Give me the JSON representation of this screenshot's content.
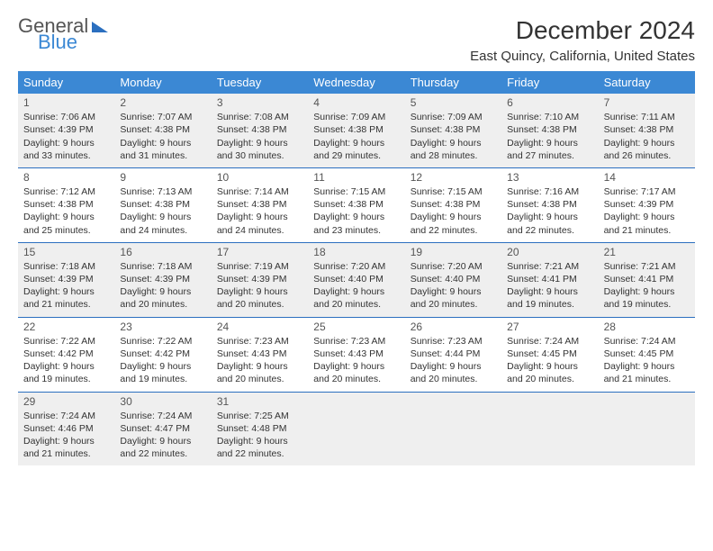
{
  "brand": {
    "line1": "General",
    "line2": "Blue"
  },
  "title": "December 2024",
  "location": "East Quincy, California, United States",
  "colors": {
    "header_bg": "#3b88d4",
    "header_text": "#ffffff",
    "week_border": "#2b6fbf",
    "shaded_cell": "#efefef",
    "text": "#333333",
    "logo_blue": "#3b88d4"
  },
  "day_names": [
    "Sunday",
    "Monday",
    "Tuesday",
    "Wednesday",
    "Thursday",
    "Friday",
    "Saturday"
  ],
  "days": {
    "1": {
      "sunrise": "Sunrise: 7:06 AM",
      "sunset": "Sunset: 4:39 PM",
      "day1": "Daylight: 9 hours",
      "day2": "and 33 minutes."
    },
    "2": {
      "sunrise": "Sunrise: 7:07 AM",
      "sunset": "Sunset: 4:38 PM",
      "day1": "Daylight: 9 hours",
      "day2": "and 31 minutes."
    },
    "3": {
      "sunrise": "Sunrise: 7:08 AM",
      "sunset": "Sunset: 4:38 PM",
      "day1": "Daylight: 9 hours",
      "day2": "and 30 minutes."
    },
    "4": {
      "sunrise": "Sunrise: 7:09 AM",
      "sunset": "Sunset: 4:38 PM",
      "day1": "Daylight: 9 hours",
      "day2": "and 29 minutes."
    },
    "5": {
      "sunrise": "Sunrise: 7:09 AM",
      "sunset": "Sunset: 4:38 PM",
      "day1": "Daylight: 9 hours",
      "day2": "and 28 minutes."
    },
    "6": {
      "sunrise": "Sunrise: 7:10 AM",
      "sunset": "Sunset: 4:38 PM",
      "day1": "Daylight: 9 hours",
      "day2": "and 27 minutes."
    },
    "7": {
      "sunrise": "Sunrise: 7:11 AM",
      "sunset": "Sunset: 4:38 PM",
      "day1": "Daylight: 9 hours",
      "day2": "and 26 minutes."
    },
    "8": {
      "sunrise": "Sunrise: 7:12 AM",
      "sunset": "Sunset: 4:38 PM",
      "day1": "Daylight: 9 hours",
      "day2": "and 25 minutes."
    },
    "9": {
      "sunrise": "Sunrise: 7:13 AM",
      "sunset": "Sunset: 4:38 PM",
      "day1": "Daylight: 9 hours",
      "day2": "and 24 minutes."
    },
    "10": {
      "sunrise": "Sunrise: 7:14 AM",
      "sunset": "Sunset: 4:38 PM",
      "day1": "Daylight: 9 hours",
      "day2": "and 24 minutes."
    },
    "11": {
      "sunrise": "Sunrise: 7:15 AM",
      "sunset": "Sunset: 4:38 PM",
      "day1": "Daylight: 9 hours",
      "day2": "and 23 minutes."
    },
    "12": {
      "sunrise": "Sunrise: 7:15 AM",
      "sunset": "Sunset: 4:38 PM",
      "day1": "Daylight: 9 hours",
      "day2": "and 22 minutes."
    },
    "13": {
      "sunrise": "Sunrise: 7:16 AM",
      "sunset": "Sunset: 4:38 PM",
      "day1": "Daylight: 9 hours",
      "day2": "and 22 minutes."
    },
    "14": {
      "sunrise": "Sunrise: 7:17 AM",
      "sunset": "Sunset: 4:39 PM",
      "day1": "Daylight: 9 hours",
      "day2": "and 21 minutes."
    },
    "15": {
      "sunrise": "Sunrise: 7:18 AM",
      "sunset": "Sunset: 4:39 PM",
      "day1": "Daylight: 9 hours",
      "day2": "and 21 minutes."
    },
    "16": {
      "sunrise": "Sunrise: 7:18 AM",
      "sunset": "Sunset: 4:39 PM",
      "day1": "Daylight: 9 hours",
      "day2": "and 20 minutes."
    },
    "17": {
      "sunrise": "Sunrise: 7:19 AM",
      "sunset": "Sunset: 4:39 PM",
      "day1": "Daylight: 9 hours",
      "day2": "and 20 minutes."
    },
    "18": {
      "sunrise": "Sunrise: 7:20 AM",
      "sunset": "Sunset: 4:40 PM",
      "day1": "Daylight: 9 hours",
      "day2": "and 20 minutes."
    },
    "19": {
      "sunrise": "Sunrise: 7:20 AM",
      "sunset": "Sunset: 4:40 PM",
      "day1": "Daylight: 9 hours",
      "day2": "and 20 minutes."
    },
    "20": {
      "sunrise": "Sunrise: 7:21 AM",
      "sunset": "Sunset: 4:41 PM",
      "day1": "Daylight: 9 hours",
      "day2": "and 19 minutes."
    },
    "21": {
      "sunrise": "Sunrise: 7:21 AM",
      "sunset": "Sunset: 4:41 PM",
      "day1": "Daylight: 9 hours",
      "day2": "and 19 minutes."
    },
    "22": {
      "sunrise": "Sunrise: 7:22 AM",
      "sunset": "Sunset: 4:42 PM",
      "day1": "Daylight: 9 hours",
      "day2": "and 19 minutes."
    },
    "23": {
      "sunrise": "Sunrise: 7:22 AM",
      "sunset": "Sunset: 4:42 PM",
      "day1": "Daylight: 9 hours",
      "day2": "and 19 minutes."
    },
    "24": {
      "sunrise": "Sunrise: 7:23 AM",
      "sunset": "Sunset: 4:43 PM",
      "day1": "Daylight: 9 hours",
      "day2": "and 20 minutes."
    },
    "25": {
      "sunrise": "Sunrise: 7:23 AM",
      "sunset": "Sunset: 4:43 PM",
      "day1": "Daylight: 9 hours",
      "day2": "and 20 minutes."
    },
    "26": {
      "sunrise": "Sunrise: 7:23 AM",
      "sunset": "Sunset: 4:44 PM",
      "day1": "Daylight: 9 hours",
      "day2": "and 20 minutes."
    },
    "27": {
      "sunrise": "Sunrise: 7:24 AM",
      "sunset": "Sunset: 4:45 PM",
      "day1": "Daylight: 9 hours",
      "day2": "and 20 minutes."
    },
    "28": {
      "sunrise": "Sunrise: 7:24 AM",
      "sunset": "Sunset: 4:45 PM",
      "day1": "Daylight: 9 hours",
      "day2": "and 21 minutes."
    },
    "29": {
      "sunrise": "Sunrise: 7:24 AM",
      "sunset": "Sunset: 4:46 PM",
      "day1": "Daylight: 9 hours",
      "day2": "and 21 minutes."
    },
    "30": {
      "sunrise": "Sunrise: 7:24 AM",
      "sunset": "Sunset: 4:47 PM",
      "day1": "Daylight: 9 hours",
      "day2": "and 22 minutes."
    },
    "31": {
      "sunrise": "Sunrise: 7:25 AM",
      "sunset": "Sunset: 4:48 PM",
      "day1": "Daylight: 9 hours",
      "day2": "and 22 minutes."
    }
  },
  "layout": {
    "weeks": [
      {
        "shaded": true,
        "days": [
          1,
          2,
          3,
          4,
          5,
          6,
          7
        ]
      },
      {
        "shaded": false,
        "days": [
          8,
          9,
          10,
          11,
          12,
          13,
          14
        ]
      },
      {
        "shaded": true,
        "days": [
          15,
          16,
          17,
          18,
          19,
          20,
          21
        ]
      },
      {
        "shaded": false,
        "days": [
          22,
          23,
          24,
          25,
          26,
          27,
          28
        ]
      },
      {
        "shaded": true,
        "days": [
          29,
          30,
          31,
          null,
          null,
          null,
          null
        ]
      }
    ]
  }
}
